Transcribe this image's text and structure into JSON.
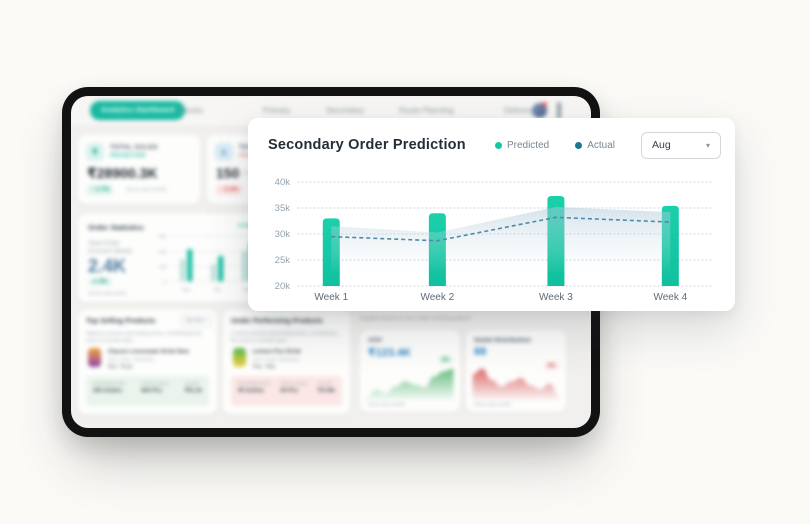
{
  "colors": {
    "accent_teal": "#16b9a0",
    "predicted_teal": "#15c7a4",
    "actual_dark": "#177b90",
    "dashed_line": "#4f8ba3",
    "value_blue": "#2e86c4",
    "green_spark": "#4db36b",
    "red_spark": "#d65454"
  },
  "dashboard": {
    "nav": {
      "active": "Analytics Dashboard",
      "items": [
        "Stocks",
        "Primary",
        "Secondary",
        "Route Planning",
        "Delivery"
      ]
    },
    "cards": {
      "total_sales": {
        "title": "TOTAL SALES",
        "subtitle": "PROJECTION",
        "icon_glyph": "₹",
        "value": "₹28900.3K",
        "change": "↑ 1.7%",
        "note": "Since last month"
      },
      "total_orders": {
        "title": "TOTAL ORDERS",
        "subtitle": "PREDICTION",
        "icon_glyph": "c",
        "value": "150",
        "unit": "Outlets",
        "change": "↓ 5.4%"
      }
    },
    "order_statistics": {
      "title": "Order Statistics",
      "live_label": "● Live Update",
      "metric_label_1": "Total Order",
      "metric_label_2": "(Current Week)",
      "value": "2.4K",
      "change": "● 3%",
      "note": "Since last week",
      "mini_chart": {
        "y_labels": [
          "300",
          "200",
          "100",
          "0"
        ],
        "days": [
          "Mon",
          "Tue",
          "Wed"
        ],
        "max": 300,
        "groups": [
          [
            150,
            215
          ],
          [
            115,
            170
          ],
          [
            205,
            260
          ]
        ],
        "colors": [
          "#bfe0da",
          "#18bda2"
        ]
      }
    },
    "top_selling": {
      "title": "Top Selling Products",
      "sort_label": "Sort By ▾",
      "subtitle": "Highest revenue generating items, contributing the most of overall sales.",
      "product": {
        "name": "Classic Lemonade Drink New",
        "sku": "SKU Code: 35615041",
        "price": "₹16 - ₹128"
      },
      "stats": [
        {
          "label": "DISTRIBUTION",
          "value": "200 Outlets"
        },
        {
          "label": "UNITS SOLD",
          "value": "840 PCs"
        },
        {
          "label": "SALES",
          "value": "₹51.2k"
        }
      ]
    },
    "under_performing": {
      "title": "Under Performing Products",
      "subtitle": "Lowest revenue generating items, contributing the least to overall sales.",
      "product": {
        "name": "Lemon Fizz Drink",
        "sku": "SKU Code: 35615041",
        "price": "₹16 - ₹88"
      },
      "stats": [
        {
          "label": "DISTRIBUTION",
          "value": "95 Outlets"
        },
        {
          "label": "UNITS SOLD",
          "value": "40 PCs"
        },
        {
          "label": "SALES",
          "value": "₹3.04k"
        }
      ]
    },
    "insights": {
      "subtitle": "Insights based on your outlet ordering pattern",
      "aov": {
        "title": "AOV",
        "value": "₹123.4K",
        "change": "4%",
        "note": "Since last month",
        "color": "#4db36b",
        "spark": [
          22,
          30,
          26,
          34,
          40,
          36,
          33,
          46,
          52,
          55
        ]
      },
      "outlet": {
        "title": "Outlet Distribution",
        "value": "88",
        "change": "3%",
        "note": "Since last month",
        "color": "#d65454",
        "spark": [
          46,
          52,
          40,
          33,
          38,
          42,
          34,
          30,
          36,
          22
        ]
      }
    }
  },
  "overlay": {
    "title": "Secondary Order Prediction",
    "legend": [
      {
        "label": "Predicted",
        "color": "#15c7a4"
      },
      {
        "label": "Actual",
        "color": "#177b90"
      }
    ],
    "month_selector": {
      "value": "Aug",
      "caret": "▾"
    }
  },
  "chart_data": {
    "type": "bar+line",
    "title": "Secondary Order Prediction",
    "categories": [
      "Week 1",
      "Week 2",
      "Week 3",
      "Week 4"
    ],
    "series": [
      {
        "name": "Predicted",
        "type": "bar",
        "color": "#15c7a4",
        "values": [
          33000,
          34000,
          37300,
          35400
        ]
      },
      {
        "name": "Actual",
        "type": "line",
        "color": "#4f8ba3",
        "dashed": true,
        "values": [
          29500,
          28700,
          33200,
          32300
        ]
      }
    ],
    "band": {
      "name": "forecast-band",
      "values": [
        31500,
        30300,
        35200,
        34200
      ]
    },
    "ylim": [
      20000,
      40000
    ],
    "yticks": [
      {
        "label": "40k",
        "value": 40000
      },
      {
        "label": "35k",
        "value": 35000
      },
      {
        "label": "30k",
        "value": 30000
      },
      {
        "label": "25k",
        "value": 25000
      },
      {
        "label": "20k",
        "value": 20000
      }
    ],
    "grid": "dotted-horizontal",
    "legend_position": "top-right"
  }
}
